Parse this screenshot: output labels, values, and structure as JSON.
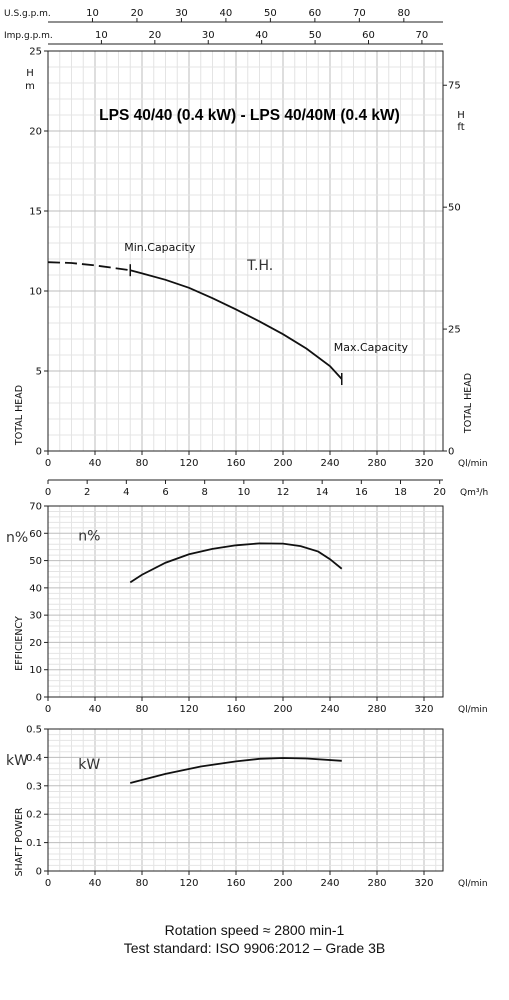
{
  "chart_data": [
    {
      "type": "line",
      "name": "head",
      "title": "LPS 40/40 (0.4 kW) - LPS 40/40M (0.4 kW)",
      "ylabel": "TOTAL HEAD",
      "y_unit": "H\nm",
      "y2label": "TOTAL HEAD",
      "y2_unit": "H\nft",
      "x_unit": "Ql/min",
      "xlim": [
        0,
        340
      ],
      "ylim": [
        0,
        25
      ],
      "y2_ticks": [
        0,
        25,
        50,
        75
      ],
      "x_ticks": [
        0,
        40,
        80,
        120,
        160,
        200,
        240,
        280,
        320
      ],
      "y_ticks": [
        0,
        5,
        10,
        15,
        20,
        25
      ],
      "top_axes": [
        {
          "unit": "U.S.g.p.m.",
          "ticks": [
            10,
            20,
            30,
            40,
            50,
            60,
            70,
            80
          ]
        },
        {
          "unit": "Imp.g.p.m.",
          "ticks": [
            10,
            20,
            30,
            40,
            50,
            60,
            70
          ]
        }
      ],
      "bottom_axis2": {
        "unit": "Qm³/h",
        "ticks": [
          0,
          2,
          4,
          6,
          8,
          10,
          12,
          14,
          16,
          18,
          20
        ]
      },
      "grid": true,
      "series": [
        {
          "values_dashed": [
            [
              0,
              11.8
            ],
            [
              20,
              11.75
            ],
            [
              40,
              11.6
            ],
            [
              70,
              11.3
            ]
          ],
          "values": [
            [
              70,
              11.3
            ],
            [
              80,
              11.1
            ],
            [
              100,
              10.7
            ],
            [
              120,
              10.2
            ],
            [
              140,
              9.55
            ],
            [
              160,
              8.85
            ],
            [
              180,
              8.1
            ],
            [
              200,
              7.3
            ],
            [
              220,
              6.4
            ],
            [
              240,
              5.3
            ],
            [
              250,
              4.5
            ]
          ]
        }
      ],
      "annotations": [
        {
          "text": "Min.Capacity",
          "x": 70,
          "y": 11.3
        },
        {
          "text": "T.H.",
          "x": 195,
          "y": 11.5
        },
        {
          "text": "Max.Capacity",
          "x": 250,
          "y": 4.5
        }
      ]
    },
    {
      "type": "line",
      "name": "efficiency",
      "ylabel": "EFFICIENCY",
      "y_unit": "n%",
      "x_unit": "Ql/min",
      "xlim": [
        0,
        340
      ],
      "ylim": [
        0,
        70
      ],
      "x_ticks": [
        0,
        40,
        80,
        120,
        160,
        200,
        240,
        280,
        320
      ],
      "y_ticks": [
        0,
        10,
        20,
        30,
        40,
        50,
        60,
        70
      ],
      "grid": true,
      "series": [
        {
          "label": "n%",
          "values": [
            [
              70,
              42
            ],
            [
              80,
              44.8
            ],
            [
              100,
              49.2
            ],
            [
              120,
              52.3
            ],
            [
              140,
              54.3
            ],
            [
              160,
              55.6
            ],
            [
              180,
              56.3
            ],
            [
              200,
              56.2
            ],
            [
              215,
              55.3
            ],
            [
              230,
              53.3
            ],
            [
              240,
              50.5
            ],
            [
              250,
              47
            ]
          ]
        }
      ]
    },
    {
      "type": "line",
      "name": "power",
      "ylabel": "SHAFT POWER",
      "y_unit": "kW",
      "x_unit": "Ql/min",
      "xlim": [
        0,
        340
      ],
      "ylim": [
        0,
        0.5
      ],
      "x_ticks": [
        0,
        40,
        80,
        120,
        160,
        200,
        240,
        280,
        320
      ],
      "y_ticks": [
        0,
        0.1,
        0.2,
        0.3,
        0.4,
        0.5
      ],
      "grid": true,
      "series": [
        {
          "label": "kW",
          "values": [
            [
              70,
              0.31
            ],
            [
              100,
              0.342
            ],
            [
              130,
              0.368
            ],
            [
              160,
              0.386
            ],
            [
              180,
              0.395
            ],
            [
              200,
              0.398
            ],
            [
              220,
              0.396
            ],
            [
              250,
              0.388
            ]
          ]
        }
      ]
    }
  ],
  "footer": {
    "line1": "Rotation speed ≈ 2800 min-1",
    "line2": "Test standard: ISO 9906:2012 – Grade 3B"
  }
}
